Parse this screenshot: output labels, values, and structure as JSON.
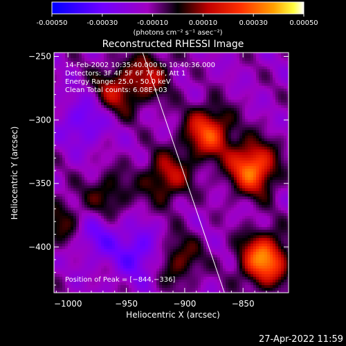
{
  "colorbar": {
    "ticks": [
      "-0.00050",
      "-0.00030",
      "-0.00010",
      "0.00010",
      "0.00030",
      "0.00050"
    ],
    "unit_label": "(photons cm⁻² s⁻¹ asec⁻²)",
    "range": [
      -0.0005,
      0.0005
    ]
  },
  "chart_data": {
    "type": "heatmap",
    "title": "Reconstructed RHESSI Image",
    "xlabel": "Heliocentric X (arcsec)",
    "ylabel": "Heliocentric Y (arcsec)",
    "xlim": [
      -1012,
      -811
    ],
    "ylim": [
      -436,
      -247
    ],
    "x_ticks": [
      -1000,
      -950,
      -900,
      -850
    ],
    "y_ticks": [
      -250,
      -300,
      -350,
      -400
    ],
    "x_tick_labels": [
      "−1000",
      "−950",
      "−900",
      "−850"
    ],
    "y_tick_labels": [
      "−250",
      "−300",
      "−350",
      "−400"
    ],
    "annotations": [
      "14-Feb-2002 10:35:40.000 to 10:40:36.000",
      "Detectors: 3F 4F 5F 6F 7F 8F, Att 1",
      "Energy Range: 25.0 - 50.0 keV",
      "Clean     Total counts: 6.08E+03"
    ],
    "peak_label": "Position of Peak = [−844,−336]",
    "peak": [
      -844,
      -336
    ],
    "limb_line": [
      [
        -936,
        -247
      ],
      [
        -866,
        -436
      ]
    ],
    "colormap": [
      "#0000ff",
      "#a000e0",
      "#000000",
      "#b00000",
      "#ff2000",
      "#ff9000",
      "#ffff00",
      "#ffffff"
    ],
    "peaks": [
      {
        "x": -842,
        "y": -338,
        "v": 0.00046
      },
      {
        "x": -832,
        "y": -410,
        "v": 0.00048
      },
      {
        "x": -880,
        "y": -310,
        "v": 0.00038
      },
      {
        "x": -960,
        "y": -278,
        "v": 0.00024
      },
      {
        "x": -915,
        "y": -345,
        "v": 0.00026
      },
      {
        "x": -965,
        "y": -360,
        "v": 0.00018
      },
      {
        "x": -905,
        "y": -410,
        "v": 0.0002
      },
      {
        "x": -1005,
        "y": -380,
        "v": 0.00016
      },
      {
        "x": -930,
        "y": -265,
        "v": 0.00022
      },
      {
        "x": -985,
        "y": -300,
        "v": -0.00018
      },
      {
        "x": -940,
        "y": -405,
        "v": -0.0002
      },
      {
        "x": -975,
        "y": -390,
        "v": -0.00016
      }
    ]
  },
  "footer": {
    "timestamp": "27-Apr-2022 11:59"
  }
}
